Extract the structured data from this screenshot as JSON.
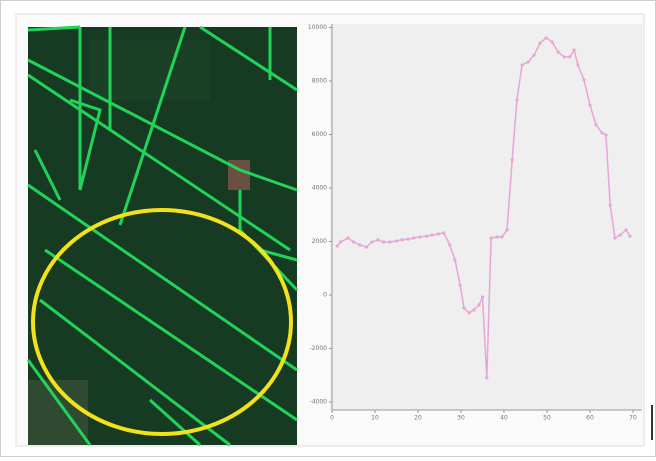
{
  "chart_data": {
    "type": "line",
    "x": [
      1.2,
      2,
      3.7,
      5,
      6.5,
      8,
      9.3,
      10.7,
      12,
      13.5,
      15,
      16.3,
      17.7,
      19,
      20.5,
      22,
      23.3,
      24.7,
      26,
      27.4,
      28.6,
      29.8,
      30.7,
      31.9,
      33,
      34.2,
      35,
      36,
      37,
      38.4,
      39.5,
      40.7,
      41.9,
      43,
      44.2,
      45.6,
      47,
      48.4,
      49.8,
      51.2,
      52.6,
      54,
      55.3,
      56.3,
      57.2,
      58.6,
      60,
      61.4,
      62.8,
      63.7,
      64.7,
      65.8,
      67,
      68.4,
      69.3
    ],
    "series": [
      {
        "color": "#e7a6d6",
        "values": [
          1830,
          1980,
          2130,
          1980,
          1870,
          1790,
          1980,
          2060,
          1980,
          1980,
          2020,
          2060,
          2090,
          2130,
          2170,
          2200,
          2240,
          2280,
          2320,
          1870,
          1310,
          370,
          -490,
          -670,
          -560,
          -370,
          -75,
          -3100,
          2130,
          2170,
          2170,
          2430,
          5050,
          7290,
          8600,
          8710,
          8970,
          9420,
          9610,
          9460,
          9080,
          8900,
          8900,
          9160,
          8600,
          8040,
          7100,
          6360,
          6060,
          5980,
          3360,
          2130,
          2240,
          2430,
          2200
        ]
      }
    ],
    "xlim": [
      0,
      72
    ],
    "xticks": [
      0,
      10,
      20,
      30,
      40,
      50,
      60,
      70
    ],
    "ylim": [
      -4300,
      10000
    ],
    "yticks": [
      -4000,
      -2000,
      0,
      2000,
      4000,
      6000,
      8000,
      10000
    ]
  }
}
